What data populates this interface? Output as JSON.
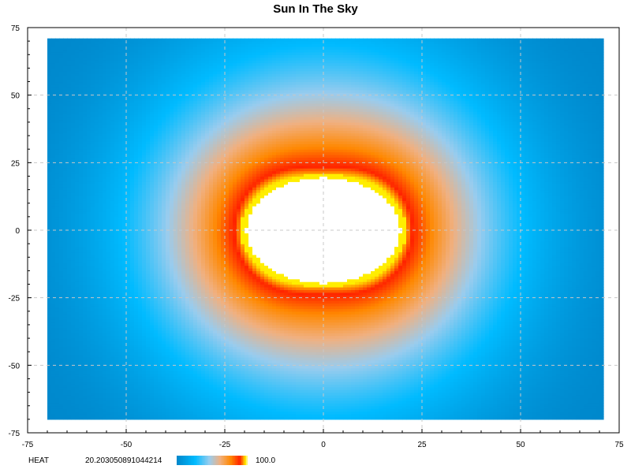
{
  "chart_data": {
    "type": "heatmap",
    "title": "Sun In The Sky",
    "xlabel": "",
    "ylabel": "",
    "xlim": [
      -75,
      75
    ],
    "ylim": [
      -75,
      75
    ],
    "x_ticks": [
      -75,
      -50,
      -25,
      0,
      25,
      50,
      75
    ],
    "y_ticks": [
      75,
      50,
      25,
      0,
      -25,
      -50,
      -75
    ],
    "x_tick_labels": [
      "-75",
      "-50",
      "-25",
      "0",
      "25",
      "50",
      "75"
    ],
    "y_tick_labels": [
      "75",
      "50",
      "25",
      "0",
      "-25",
      "-50",
      "-75"
    ],
    "grid": true,
    "data_extent": {
      "x": [
        -70,
        71
      ],
      "y": [
        -70,
        71
      ]
    },
    "field": {
      "description_of_values": "radial heat field centered at origin, saturated at 100.0 inside the sun disc",
      "center": [
        0,
        0
      ],
      "disc_radii_data_units": {
        "x": 21,
        "y": 21
      },
      "min_value": 20.203050891044214,
      "max_value": 100.0
    },
    "colorbar": {
      "label": "HEAT",
      "min_label": "20.203050891044214",
      "max_label": "100.0",
      "stops": [
        {
          "t": 0.0,
          "color": "#0088cc"
        },
        {
          "t": 0.25,
          "color": "#00bbff"
        },
        {
          "t": 0.45,
          "color": "#99ccee"
        },
        {
          "t": 0.6,
          "color": "#f0b080"
        },
        {
          "t": 0.75,
          "color": "#ff8800"
        },
        {
          "t": 0.88,
          "color": "#ff2200"
        },
        {
          "t": 0.96,
          "color": "#ffee00"
        },
        {
          "t": 1.0,
          "color": "#ffffff"
        }
      ]
    }
  }
}
